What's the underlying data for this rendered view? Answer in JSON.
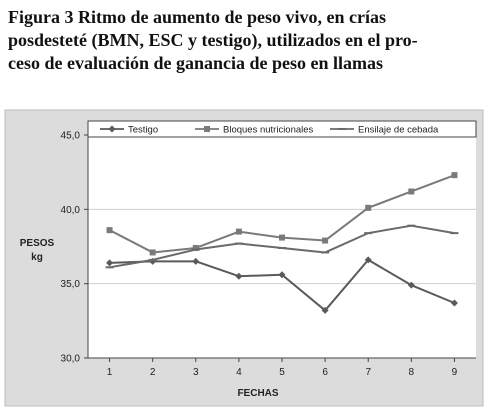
{
  "caption": {
    "lines": [
      "Figura 3 Ritmo de aumento de peso vivo, en crías",
      "posdesteté (BMN, ESC y testigo), utilizados en el pro-",
      "ceso de evaluación de ganancia de peso en llamas"
    ]
  },
  "colors": {
    "testigo": "#5a5a5a",
    "bloques": "#7a7a7a",
    "ensilaje": "#6a6a6a",
    "axis": "#444444",
    "gridline": "#ffffff",
    "plot_bg": "#ffffff"
  },
  "chart_data": {
    "type": "line",
    "title": "",
    "xlabel": "FECHAS",
    "ylabel": [
      "PESOS",
      "kg"
    ],
    "x": [
      1,
      2,
      3,
      4,
      5,
      6,
      7,
      8,
      9
    ],
    "xticks": [
      "1",
      "2",
      "3",
      "4",
      "5",
      "6",
      "7",
      "8",
      "9"
    ],
    "ylim": [
      30,
      45
    ],
    "yticks": [
      "30,0",
      "35,0",
      "40,0",
      "45,0"
    ],
    "ytick_values": [
      30,
      35,
      40,
      45
    ],
    "legend_position": "top",
    "series": [
      {
        "name": "Testigo",
        "marker": "diamond",
        "values": [
          36.4,
          36.5,
          36.5,
          35.5,
          35.6,
          33.2,
          36.6,
          34.9,
          33.7
        ]
      },
      {
        "name": "Bloques nutricionales",
        "marker": "square",
        "values": [
          38.6,
          37.1,
          37.4,
          38.5,
          38.1,
          37.9,
          40.1,
          41.2,
          42.3
        ]
      },
      {
        "name": "Ensilaje de cebada",
        "marker": "dash",
        "values": [
          36.1,
          36.6,
          37.3,
          37.7,
          37.4,
          37.1,
          38.4,
          38.9,
          38.4
        ]
      }
    ]
  }
}
